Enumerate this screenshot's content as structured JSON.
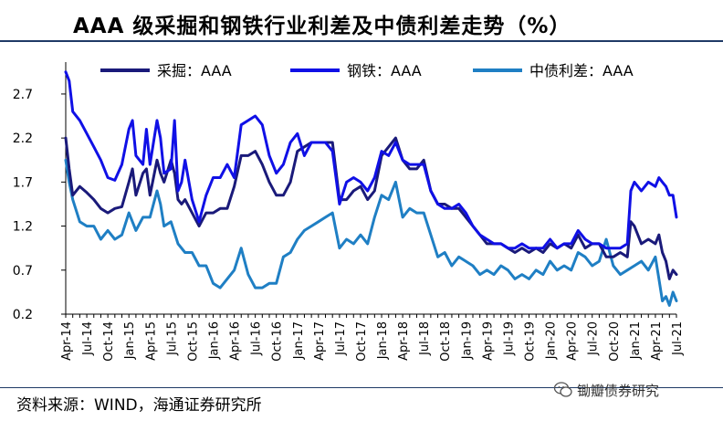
{
  "header": {
    "title": "AAA 级采掘和钢铁行业利差及中债利差走势（%）"
  },
  "footer": {
    "source": "资料来源：WIND，海通证券研究所",
    "watermark": "锄瓣债券研究"
  },
  "colors": {
    "mining": "#1a1a7a",
    "steel": "#1010e6",
    "cbond": "#1f7fc4",
    "axis": "#000000"
  },
  "chart_data": {
    "type": "line",
    "title": "AAA 级采掘和钢铁行业利差及中债利差走势（%）",
    "xlabel": "",
    "ylabel": "",
    "ylim": [
      0.2,
      3.0
    ],
    "yticks": [
      "0.2",
      "0.7",
      "1.2",
      "1.7",
      "2.2",
      "2.7"
    ],
    "ytick_values": [
      0.2,
      0.7,
      1.2,
      1.7,
      2.2,
      2.7
    ],
    "xlim": [
      0,
      87
    ],
    "xticks": [
      {
        "label": "Apr-14",
        "i": 0
      },
      {
        "label": "Jul-14",
        "i": 3
      },
      {
        "label": "Oct-14",
        "i": 6
      },
      {
        "label": "Jan-15",
        "i": 9
      },
      {
        "label": "Apr-15",
        "i": 12
      },
      {
        "label": "Jul-15",
        "i": 15
      },
      {
        "label": "Oct-15",
        "i": 18
      },
      {
        "label": "Jan-16",
        "i": 21
      },
      {
        "label": "Apr-16",
        "i": 24
      },
      {
        "label": "Jul-16",
        "i": 27
      },
      {
        "label": "Oct-16",
        "i": 30
      },
      {
        "label": "Jan-17",
        "i": 33
      },
      {
        "label": "Apr-17",
        "i": 36
      },
      {
        "label": "Jul-17",
        "i": 39
      },
      {
        "label": "Oct-17",
        "i": 42
      },
      {
        "label": "Jan-18",
        "i": 45
      },
      {
        "label": "Apr-18",
        "i": 48
      },
      {
        "label": "Jul-18",
        "i": 51
      },
      {
        "label": "Oct-18",
        "i": 54
      },
      {
        "label": "Jan-19",
        "i": 57
      },
      {
        "label": "Apr-19",
        "i": 60
      },
      {
        "label": "Jul-19",
        "i": 63
      },
      {
        "label": "Oct-19",
        "i": 66
      },
      {
        "label": "Jan-20",
        "i": 69
      },
      {
        "label": "Apr-20",
        "i": 72
      },
      {
        "label": "Jul-20",
        "i": 75
      },
      {
        "label": "Oct-20",
        "i": 78
      },
      {
        "label": "Jan-21",
        "i": 81
      },
      {
        "label": "Apr-21",
        "i": 84
      },
      {
        "label": "Jul-21",
        "i": 87
      }
    ],
    "legend_position": "top",
    "series": [
      {
        "name": "采掘：AAA",
        "color_key": "mining",
        "points": [
          [
            0,
            2.2
          ],
          [
            0.5,
            1.85
          ],
          [
            1,
            1.55
          ],
          [
            2,
            1.65
          ],
          [
            3,
            1.58
          ],
          [
            4,
            1.5
          ],
          [
            5,
            1.4
          ],
          [
            6,
            1.35
          ],
          [
            7,
            1.4
          ],
          [
            8,
            1.42
          ],
          [
            9,
            1.7
          ],
          [
            9.5,
            1.85
          ],
          [
            10,
            1.55
          ],
          [
            11,
            1.8
          ],
          [
            11.5,
            1.85
          ],
          [
            12,
            1.55
          ],
          [
            13,
            1.95
          ],
          [
            13.5,
            1.8
          ],
          [
            14,
            1.7
          ],
          [
            15,
            1.95
          ],
          [
            15.5,
            1.8
          ],
          [
            16,
            1.5
          ],
          [
            16.5,
            1.45
          ],
          [
            17,
            1.5
          ],
          [
            18,
            1.35
          ],
          [
            19,
            1.2
          ],
          [
            20,
            1.35
          ],
          [
            21,
            1.35
          ],
          [
            22,
            1.4
          ],
          [
            23,
            1.4
          ],
          [
            24,
            1.65
          ],
          [
            25,
            2.0
          ],
          [
            26,
            2.0
          ],
          [
            27,
            2.05
          ],
          [
            28,
            1.9
          ],
          [
            29,
            1.7
          ],
          [
            30,
            1.55
          ],
          [
            31,
            1.55
          ],
          [
            32,
            1.7
          ],
          [
            33,
            2.05
          ],
          [
            34,
            2.1
          ],
          [
            35,
            2.15
          ],
          [
            36,
            2.15
          ],
          [
            37,
            2.15
          ],
          [
            38,
            2.15
          ],
          [
            39,
            1.5
          ],
          [
            40,
            1.5
          ],
          [
            41,
            1.6
          ],
          [
            42,
            1.65
          ],
          [
            43,
            1.5
          ],
          [
            44,
            1.6
          ],
          [
            45,
            2.0
          ],
          [
            46,
            2.1
          ],
          [
            47,
            2.2
          ],
          [
            48,
            1.95
          ],
          [
            49,
            1.85
          ],
          [
            50,
            1.85
          ],
          [
            51,
            1.95
          ],
          [
            52,
            1.6
          ],
          [
            53,
            1.45
          ],
          [
            54,
            1.45
          ],
          [
            55,
            1.4
          ],
          [
            56,
            1.4
          ],
          [
            57,
            1.3
          ],
          [
            58,
            1.2
          ],
          [
            59,
            1.1
          ],
          [
            60,
            1.0
          ],
          [
            61,
            1.0
          ],
          [
            62,
            1.0
          ],
          [
            63,
            0.95
          ],
          [
            64,
            0.9
          ],
          [
            65,
            0.95
          ],
          [
            66,
            0.9
          ],
          [
            67,
            0.95
          ],
          [
            68,
            0.9
          ],
          [
            69,
            1.0
          ],
          [
            70,
            0.95
          ],
          [
            71,
            1.0
          ],
          [
            72,
            0.95
          ],
          [
            73,
            1.1
          ],
          [
            74,
            0.95
          ],
          [
            75,
            1.0
          ],
          [
            76,
            1.0
          ],
          [
            77,
            0.85
          ],
          [
            78,
            0.85
          ],
          [
            79,
            0.9
          ],
          [
            80,
            0.85
          ],
          [
            80.5,
            1.25
          ],
          [
            81,
            1.2
          ],
          [
            82,
            1.0
          ],
          [
            83,
            1.05
          ],
          [
            84,
            1.0
          ],
          [
            84.5,
            1.1
          ],
          [
            85,
            0.9
          ],
          [
            85.5,
            0.8
          ],
          [
            86,
            0.6
          ],
          [
            86.5,
            0.7
          ],
          [
            87,
            0.65
          ]
        ]
      },
      {
        "name": "钢铁：AAA",
        "color_key": "steel",
        "points": [
          [
            0,
            2.95
          ],
          [
            0.5,
            2.85
          ],
          [
            1,
            2.5
          ],
          [
            2,
            2.4
          ],
          [
            3,
            2.25
          ],
          [
            4,
            2.1
          ],
          [
            5,
            1.95
          ],
          [
            6,
            1.75
          ],
          [
            7,
            1.72
          ],
          [
            8,
            1.9
          ],
          [
            9,
            2.3
          ],
          [
            9.5,
            2.4
          ],
          [
            10,
            2.0
          ],
          [
            11,
            1.9
          ],
          [
            11.5,
            2.3
          ],
          [
            12,
            1.9
          ],
          [
            13,
            2.4
          ],
          [
            13.5,
            2.2
          ],
          [
            14,
            1.8
          ],
          [
            15,
            1.85
          ],
          [
            15.5,
            2.4
          ],
          [
            16,
            1.6
          ],
          [
            16.5,
            1.7
          ],
          [
            17,
            1.95
          ],
          [
            18,
            1.5
          ],
          [
            19,
            1.25
          ],
          [
            20,
            1.55
          ],
          [
            21,
            1.75
          ],
          [
            22,
            1.75
          ],
          [
            23,
            1.9
          ],
          [
            24,
            1.75
          ],
          [
            25,
            2.35
          ],
          [
            26,
            2.4
          ],
          [
            27,
            2.45
          ],
          [
            28,
            2.35
          ],
          [
            29,
            2.0
          ],
          [
            30,
            1.8
          ],
          [
            31,
            1.9
          ],
          [
            32,
            2.15
          ],
          [
            33,
            2.25
          ],
          [
            34,
            2.0
          ],
          [
            35,
            2.15
          ],
          [
            36,
            2.15
          ],
          [
            37,
            2.15
          ],
          [
            38,
            2.05
          ],
          [
            39,
            1.45
          ],
          [
            40,
            1.7
          ],
          [
            41,
            1.75
          ],
          [
            42,
            1.7
          ],
          [
            43,
            1.6
          ],
          [
            44,
            1.75
          ],
          [
            45,
            2.05
          ],
          [
            46,
            2.0
          ],
          [
            47,
            2.15
          ],
          [
            48,
            1.95
          ],
          [
            49,
            1.9
          ],
          [
            50,
            1.9
          ],
          [
            51,
            1.9
          ],
          [
            52,
            1.6
          ],
          [
            53,
            1.45
          ],
          [
            54,
            1.4
          ],
          [
            55,
            1.4
          ],
          [
            56,
            1.45
          ],
          [
            57,
            1.35
          ],
          [
            58,
            1.2
          ],
          [
            59,
            1.1
          ],
          [
            60,
            1.05
          ],
          [
            61,
            1.0
          ],
          [
            62,
            1.0
          ],
          [
            63,
            0.95
          ],
          [
            64,
            0.95
          ],
          [
            65,
            1.0
          ],
          [
            66,
            0.95
          ],
          [
            67,
            0.95
          ],
          [
            68,
            0.95
          ],
          [
            69,
            1.05
          ],
          [
            70,
            0.95
          ],
          [
            71,
            1.0
          ],
          [
            72,
            1.0
          ],
          [
            73,
            1.15
          ],
          [
            74,
            1.05
          ],
          [
            75,
            1.0
          ],
          [
            76,
            1.0
          ],
          [
            77,
            0.95
          ],
          [
            78,
            0.95
          ],
          [
            79,
            0.95
          ],
          [
            80,
            1.0
          ],
          [
            80.5,
            1.6
          ],
          [
            81,
            1.7
          ],
          [
            82,
            1.6
          ],
          [
            83,
            1.7
          ],
          [
            84,
            1.65
          ],
          [
            84.5,
            1.75
          ],
          [
            85,
            1.7
          ],
          [
            85.5,
            1.65
          ],
          [
            86,
            1.55
          ],
          [
            86.5,
            1.55
          ],
          [
            87,
            1.3
          ]
        ]
      },
      {
        "name": "中债利差：AAA",
        "color_key": "cbond",
        "points": [
          [
            0,
            1.95
          ],
          [
            0.5,
            1.7
          ],
          [
            1,
            1.5
          ],
          [
            2,
            1.25
          ],
          [
            3,
            1.2
          ],
          [
            4,
            1.2
          ],
          [
            5,
            1.05
          ],
          [
            6,
            1.15
          ],
          [
            7,
            1.05
          ],
          [
            8,
            1.1
          ],
          [
            9,
            1.35
          ],
          [
            10,
            1.15
          ],
          [
            11,
            1.3
          ],
          [
            12,
            1.3
          ],
          [
            13,
            1.6
          ],
          [
            13.5,
            1.45
          ],
          [
            14,
            1.2
          ],
          [
            15,
            1.25
          ],
          [
            16,
            1.0
          ],
          [
            17,
            0.9
          ],
          [
            18,
            0.9
          ],
          [
            19,
            0.75
          ],
          [
            20,
            0.75
          ],
          [
            21,
            0.55
          ],
          [
            22,
            0.5
          ],
          [
            23,
            0.6
          ],
          [
            24,
            0.7
          ],
          [
            25,
            0.95
          ],
          [
            26,
            0.65
          ],
          [
            27,
            0.5
          ],
          [
            28,
            0.5
          ],
          [
            29,
            0.55
          ],
          [
            30,
            0.55
          ],
          [
            31,
            0.85
          ],
          [
            32,
            0.9
          ],
          [
            33,
            1.05
          ],
          [
            34,
            1.15
          ],
          [
            35,
            1.2
          ],
          [
            36,
            1.25
          ],
          [
            37,
            1.3
          ],
          [
            38,
            1.35
          ],
          [
            39,
            0.95
          ],
          [
            40,
            1.05
          ],
          [
            41,
            1.0
          ],
          [
            42,
            1.1
          ],
          [
            43,
            1.0
          ],
          [
            44,
            1.3
          ],
          [
            45,
            1.55
          ],
          [
            46,
            1.5
          ],
          [
            47,
            1.7
          ],
          [
            48,
            1.3
          ],
          [
            49,
            1.4
          ],
          [
            50,
            1.35
          ],
          [
            51,
            1.35
          ],
          [
            52,
            1.1
          ],
          [
            53,
            0.85
          ],
          [
            54,
            0.9
          ],
          [
            55,
            0.75
          ],
          [
            56,
            0.85
          ],
          [
            57,
            0.8
          ],
          [
            58,
            0.75
          ],
          [
            59,
            0.65
          ],
          [
            60,
            0.7
          ],
          [
            61,
            0.65
          ],
          [
            62,
            0.75
          ],
          [
            63,
            0.7
          ],
          [
            64,
            0.6
          ],
          [
            65,
            0.65
          ],
          [
            66,
            0.6
          ],
          [
            67,
            0.7
          ],
          [
            68,
            0.65
          ],
          [
            69,
            0.8
          ],
          [
            70,
            0.7
          ],
          [
            71,
            0.75
          ],
          [
            72,
            0.7
          ],
          [
            73,
            0.9
          ],
          [
            74,
            0.85
          ],
          [
            75,
            0.75
          ],
          [
            76,
            0.8
          ],
          [
            77,
            1.05
          ],
          [
            78,
            0.75
          ],
          [
            79,
            0.65
          ],
          [
            80,
            0.7
          ],
          [
            81,
            0.75
          ],
          [
            82,
            0.8
          ],
          [
            83,
            0.7
          ],
          [
            84,
            0.85
          ],
          [
            84.5,
            0.6
          ],
          [
            85,
            0.35
          ],
          [
            85.5,
            0.4
          ],
          [
            86,
            0.3
          ],
          [
            86.5,
            0.45
          ],
          [
            87,
            0.35
          ]
        ]
      }
    ]
  }
}
